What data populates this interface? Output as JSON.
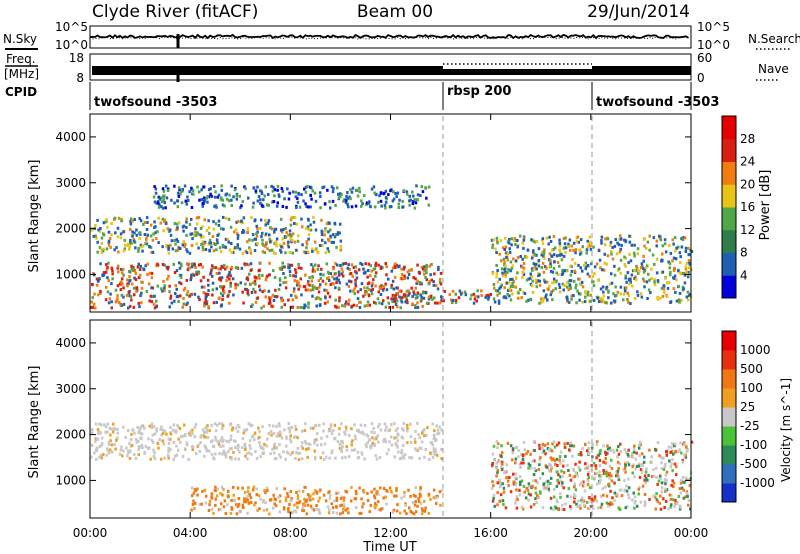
{
  "header": {
    "station": "Clyde River (fitACF)",
    "beam": "Beam 00",
    "date": "29/Jun/2014"
  },
  "noise_panel": {
    "label": "N.Sky",
    "right_label": "N.Search",
    "left_ticks": [
      "10^5",
      "10^0"
    ],
    "right_ticks": [
      "10^5",
      "10^0"
    ]
  },
  "freq_panel": {
    "label_line1": "Freq.",
    "label_line2": "[MHz]",
    "right_label": "Nave",
    "left_ticks": [
      "18",
      "8"
    ],
    "right_ticks": [
      "60",
      "0"
    ]
  },
  "cpid_panel": {
    "label": "CPID",
    "segments": [
      {
        "name": "twofsound -3503",
        "start_hour": 0,
        "end_hour": 14
      },
      {
        "name": "rbsp 200",
        "start_hour": 14,
        "end_hour": 20
      },
      {
        "name": "twofsound -3503",
        "start_hour": 20,
        "end_hour": 24
      }
    ]
  },
  "x_axis": {
    "title": "Time UT",
    "tick_labels": [
      "00:00",
      "04:00",
      "08:00",
      "12:00",
      "16:00",
      "20:00",
      "00:00"
    ]
  },
  "chart_data": [
    {
      "type": "heatmap",
      "name": "power",
      "xlabel": "Time UT",
      "ylabel": "Slant Range [km]",
      "xlim": [
        0,
        24
      ],
      "ylim": [
        180,
        4500
      ],
      "y_ticks": [
        1000,
        2000,
        3000,
        4000
      ],
      "colorbar": {
        "label": "Power [dB]",
        "tick_labels": [
          "28",
          "24",
          "20",
          "16",
          "12",
          "8",
          "4"
        ],
        "colors": [
          "#0000dd",
          "#1e5fb4",
          "#2f7d4a",
          "#52a64a",
          "#e8c414",
          "#f07d0d",
          "#d81f10",
          "#e60000"
        ]
      },
      "regions": [
        {
          "t0": 0.0,
          "t1": 14.0,
          "r0": 300,
          "r1": 1300,
          "level": "high"
        },
        {
          "t0": 0.0,
          "t1": 10.0,
          "r0": 1500,
          "r1": 2300,
          "level": "mid"
        },
        {
          "t0": 2.5,
          "t1": 13.5,
          "r0": 2500,
          "r1": 3000,
          "level": "low"
        },
        {
          "t0": 12.0,
          "t1": 16.0,
          "r0": 400,
          "r1": 700,
          "level": "high"
        },
        {
          "t0": 16.0,
          "t1": 24.0,
          "r0": 400,
          "r1": 1900,
          "level": "mid"
        }
      ]
    },
    {
      "type": "heatmap",
      "name": "velocity",
      "xlabel": "Time UT",
      "ylabel": "Slant Range [km]",
      "xlim": [
        0,
        24
      ],
      "ylim": [
        180,
        4500
      ],
      "y_ticks": [
        1000,
        2000,
        3000,
        4000
      ],
      "colorbar": {
        "label": "Velocity [m s^-1]",
        "tick_labels": [
          "1000",
          "500",
          "100",
          "25",
          "-25",
          "-100",
          "-500",
          "-1000"
        ],
        "colors": [
          "#1530c8",
          "#2f6fbf",
          "#2f8a5a",
          "#4cc23a",
          "#c8c8c8",
          "#f0a020",
          "#f07814",
          "#e83010",
          "#e80000"
        ]
      },
      "regions": [
        {
          "t0": 0.0,
          "t1": 14.0,
          "r0": 1500,
          "r1": 2300,
          "level": "ground"
        },
        {
          "t0": 4.0,
          "t1": 14.0,
          "r0": 300,
          "r1": 900,
          "level": "away"
        },
        {
          "t0": 16.0,
          "t1": 24.0,
          "r0": 400,
          "r1": 1900,
          "level": "mixed"
        }
      ]
    }
  ]
}
